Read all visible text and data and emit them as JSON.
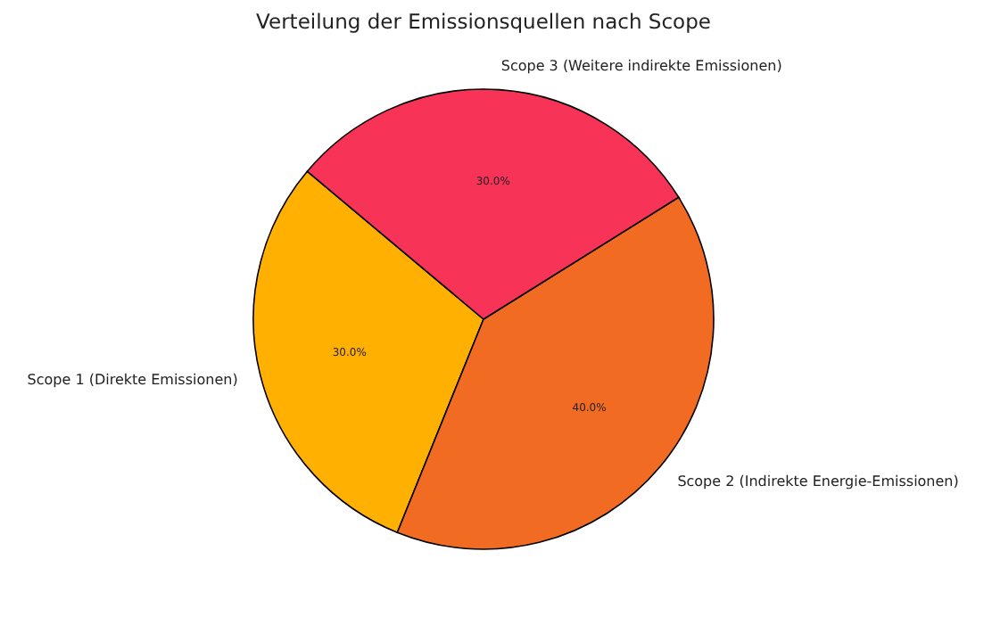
{
  "chart_data": {
    "type": "pie",
    "title": "Verteilung der Emissionsquellen nach Scope",
    "categories": [
      "Scope 1 (Direkte Emissionen)",
      "Scope 2 (Indirekte Energie-Emissionen)",
      "Scope 3 (Weitere indirekte Emissionen)"
    ],
    "values": [
      30,
      40,
      30
    ],
    "colors": [
      "#ffb000",
      "#f26b22",
      "#f73358"
    ],
    "value_labels": [
      "30.0%",
      "40.0%",
      "30.0%"
    ]
  }
}
